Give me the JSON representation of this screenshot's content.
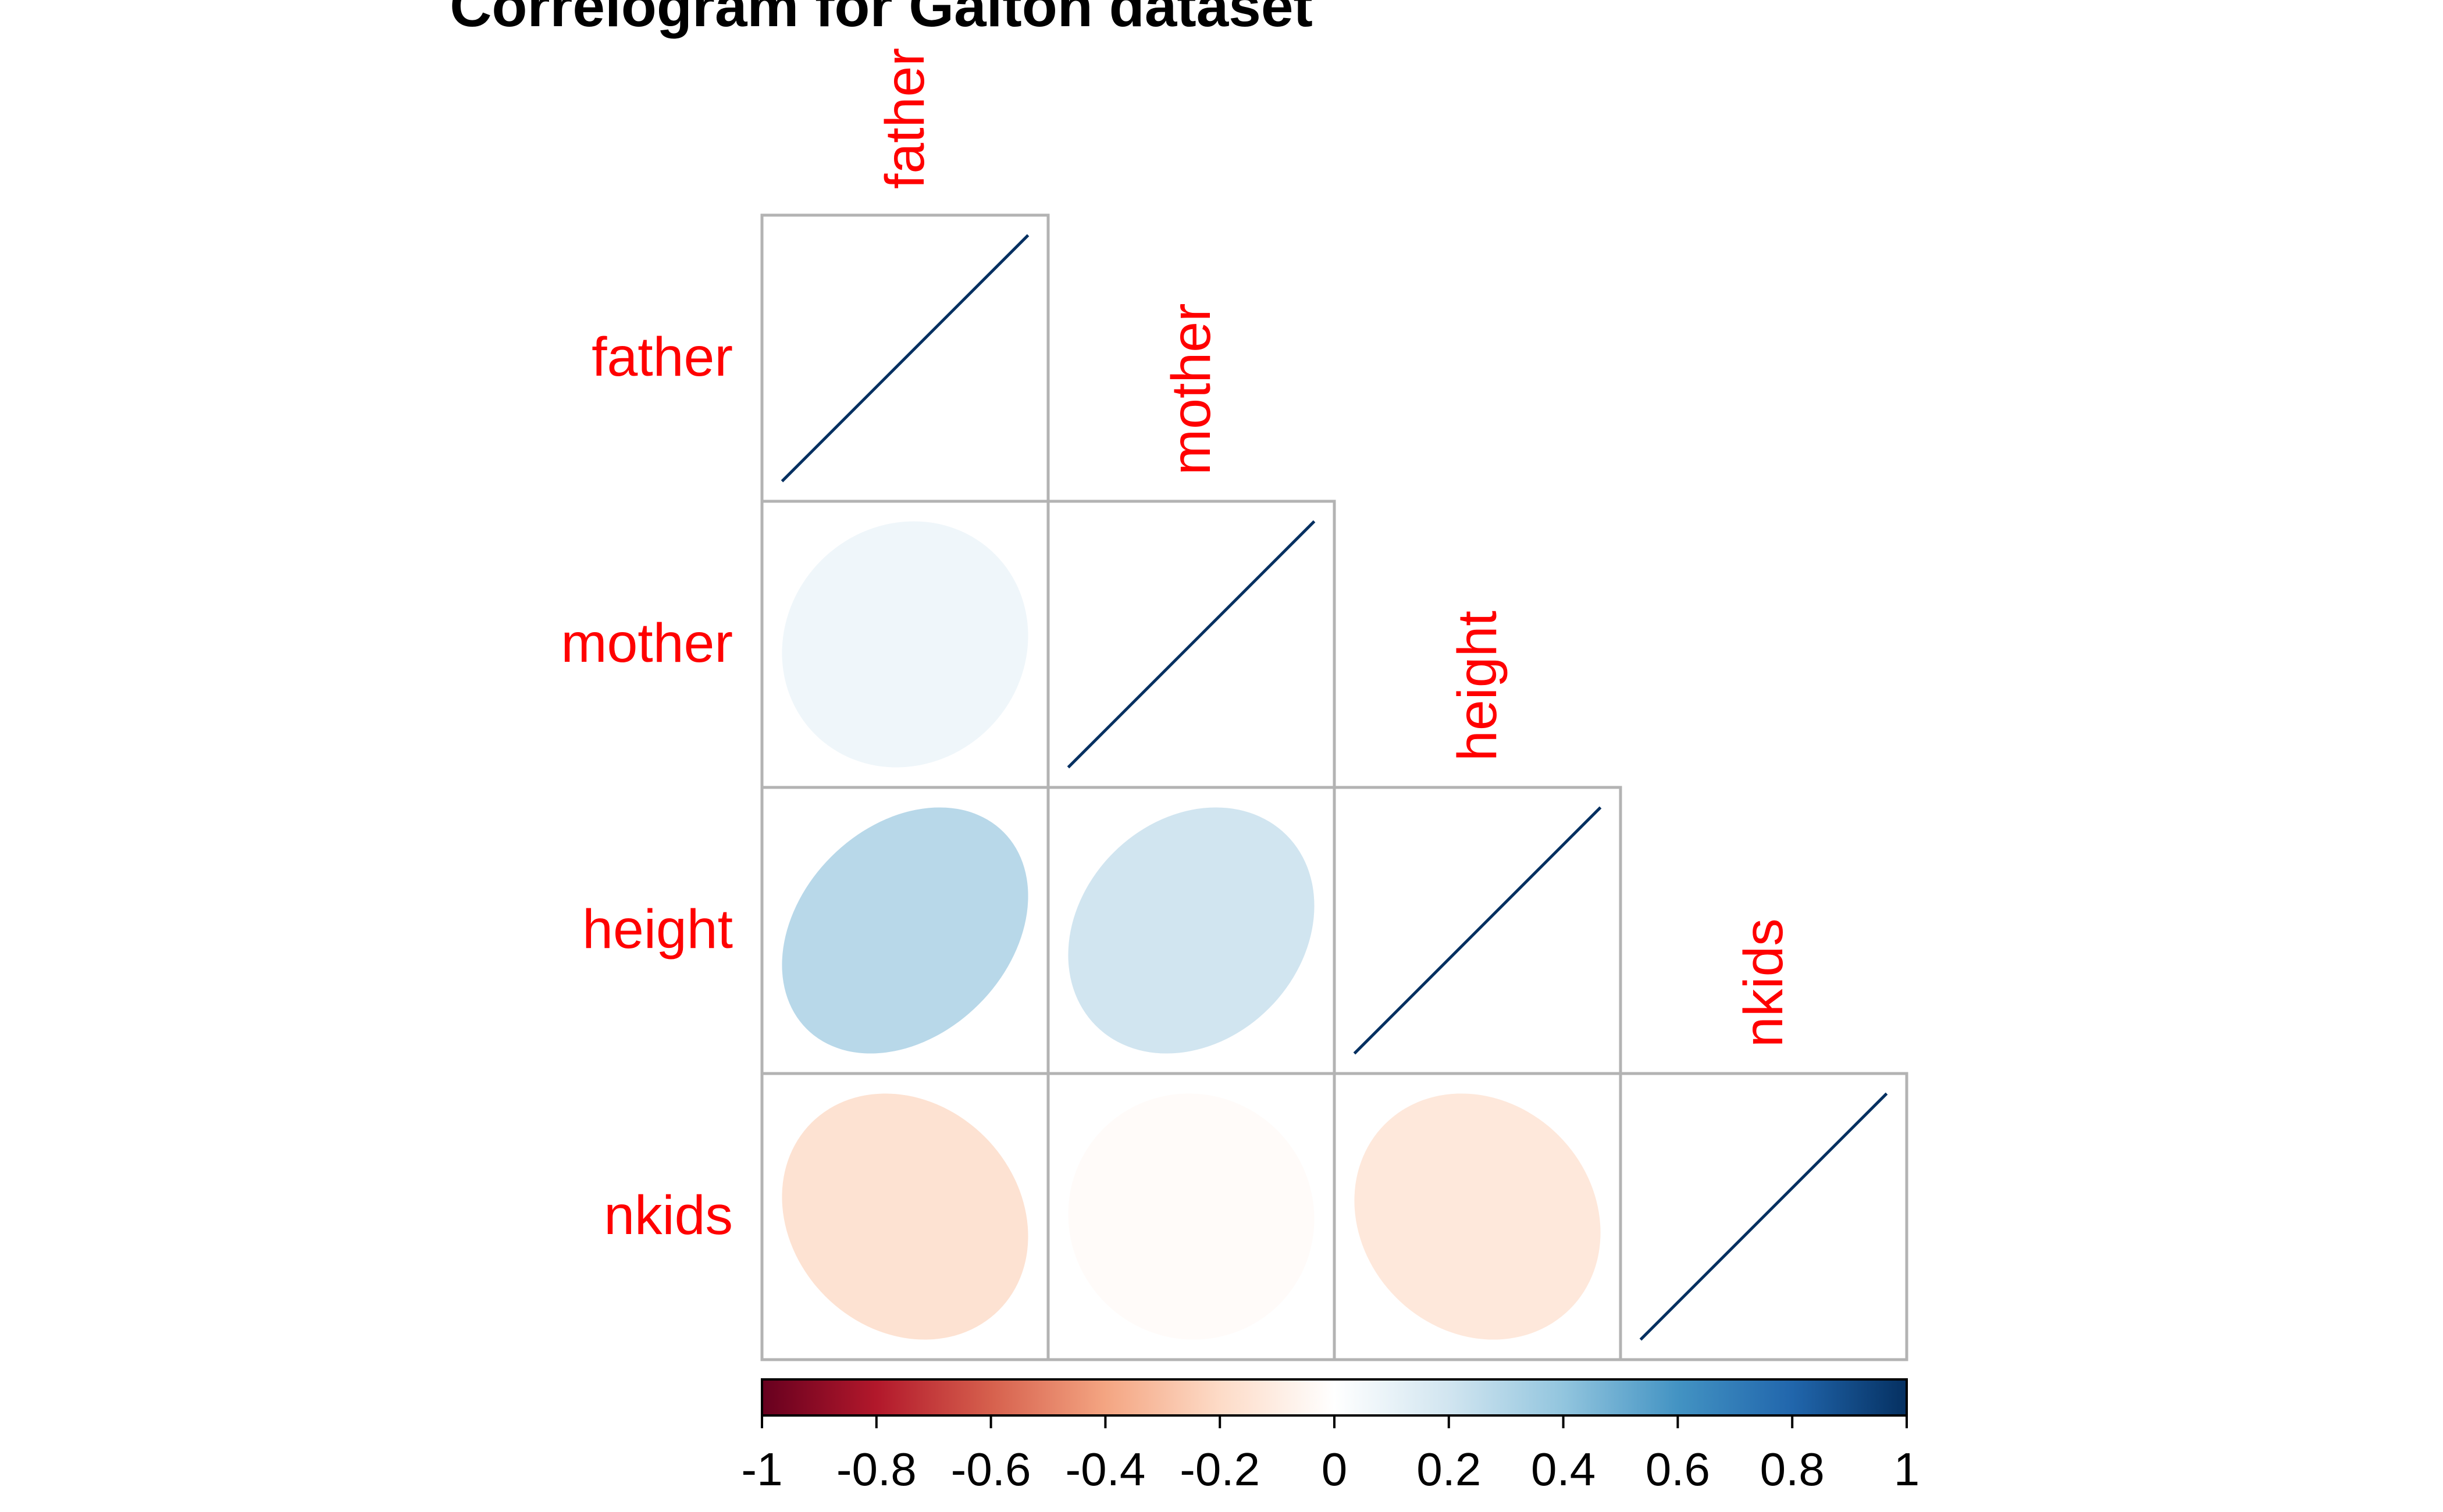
{
  "chart_data": {
    "type": "heatmap",
    "subtype": "correlogram-ellipse-lower",
    "title": "Correlogram for Galton dataset",
    "variables": [
      "father",
      "mother",
      "height",
      "nkids"
    ],
    "matrix": [
      [
        1.0,
        0.07,
        0.28,
        -0.16
      ],
      [
        0.07,
        1.0,
        0.2,
        -0.02
      ],
      [
        0.28,
        0.2,
        1.0,
        -0.13
      ],
      [
        -0.16,
        -0.02,
        -0.13,
        1.0
      ]
    ],
    "colorbar": {
      "range": [
        -1,
        1
      ],
      "ticks": [
        "-1",
        "-0.8",
        "-0.6",
        "-0.4",
        "-0.2",
        "0",
        "0.2",
        "0.4",
        "0.6",
        "0.8",
        "1"
      ],
      "colors": [
        "#67001f",
        "#b2182b",
        "#d6604d",
        "#f4a582",
        "#fddbc7",
        "#ffffff",
        "#d1e5f0",
        "#92c5de",
        "#4393c3",
        "#2166ac",
        "#053061"
      ]
    },
    "label_color": "#ff0000",
    "grid": "gray-cell-borders",
    "legend_placement": "bottom"
  }
}
